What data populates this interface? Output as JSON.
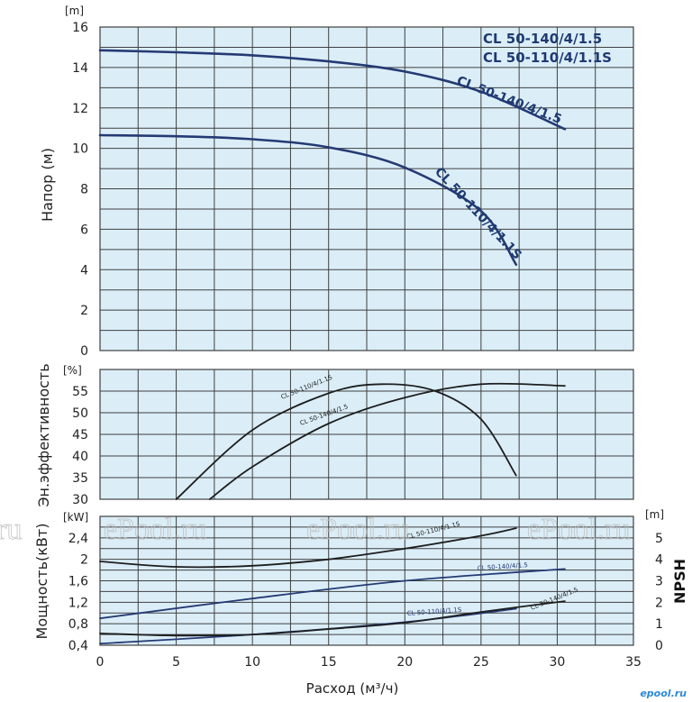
{
  "chart_data": [
    {
      "type": "line",
      "id": "head",
      "ylabel": "Напор (м)",
      "yunit": "[m]",
      "xlim": [
        0,
        35
      ],
      "ylim": [
        0,
        16
      ],
      "yticks": [
        "0",
        "2",
        "4",
        "6",
        "8",
        "10",
        "12",
        "14",
        "16"
      ],
      "grid": true,
      "legend_position": "top-right",
      "legend": [
        "CL 50-140/4/1.5",
        "CL 50-110/4/1.1S"
      ],
      "series": [
        {
          "name": "CL 50-140/4/1.5",
          "label": "CL 50-140/4/1.5",
          "points": [
            [
              0,
              14.85
            ],
            [
              5,
              14.75
            ],
            [
              10,
              14.6
            ],
            [
              15,
              14.3
            ],
            [
              20,
              13.8
            ],
            [
              25,
              12.8
            ],
            [
              30.5,
              10.95
            ]
          ]
        },
        {
          "name": "CL 50-110/4/1.1S",
          "label": "CL 50-110/4/1.1S",
          "points": [
            [
              0,
              10.65
            ],
            [
              5,
              10.6
            ],
            [
              10,
              10.45
            ],
            [
              15,
              10.05
            ],
            [
              20,
              9.05
            ],
            [
              25,
              6.9
            ],
            [
              27.3,
              4.25
            ]
          ]
        }
      ]
    },
    {
      "type": "line",
      "id": "efficiency",
      "ylabel": "Эн.эффективность",
      "yunit": "[%]",
      "xlim": [
        0,
        35
      ],
      "ylim": [
        30,
        60
      ],
      "yticks": [
        "30",
        "35",
        "40",
        "45",
        "50",
        "55"
      ],
      "grid": true,
      "series": [
        {
          "name": "CL 50-110/4/1.1S",
          "label": "CL 50-110/4/1.1S",
          "points": [
            [
              5,
              30
            ],
            [
              10,
              46
            ],
            [
              15,
              54.5
            ],
            [
              18.5,
              56.6
            ],
            [
              22,
              55
            ],
            [
              25,
              48.5
            ],
            [
              27.3,
              35.5
            ]
          ]
        },
        {
          "name": "CL 50-140/4/1.5",
          "label": "CL 50-140/4/1.5",
          "points": [
            [
              7.2,
              30
            ],
            [
              10,
              37.5
            ],
            [
              15,
              47.5
            ],
            [
              20,
              53.5
            ],
            [
              25,
              56.6
            ],
            [
              30.5,
              56.2
            ]
          ]
        }
      ]
    },
    {
      "type": "line",
      "id": "power-npsh",
      "ylabel": "Мощность(кВт)",
      "yunit": "[kW]",
      "y2label": "NPSH",
      "y2unit": "[m]",
      "xlabel": "Расход (м³/ч)",
      "xlim": [
        0,
        35
      ],
      "ylim": [
        0.4,
        2.8
      ],
      "y2lim": [
        0,
        6
      ],
      "xticks": [
        "0",
        "5",
        "10",
        "15",
        "20",
        "25",
        "30",
        "35"
      ],
      "yticks": [
        "0,4",
        "0,8",
        "1,2",
        "1,6",
        "2",
        "2,4"
      ],
      "y2ticks": [
        "0",
        "1",
        "2",
        "3",
        "4",
        "5"
      ],
      "grid": true,
      "series": [
        {
          "name": "CL 50-110/4/1.1S",
          "label": "CL 50-110/4/1.1S",
          "quantity": "NPSH",
          "axis": "y2",
          "points": [
            [
              0,
              3.9
            ],
            [
              5,
              3.65
            ],
            [
              10,
              3.7
            ],
            [
              15,
              4.0
            ],
            [
              20,
              4.5
            ],
            [
              25,
              5.1
            ],
            [
              27.3,
              5.45
            ]
          ]
        },
        {
          "name": "CL 50-140/4/1.5",
          "label": "CL 50-140/4/1.5",
          "quantity": "power",
          "axis": "y",
          "points": [
            [
              0,
              0.9
            ],
            [
              10,
              1.27
            ],
            [
              20,
              1.6
            ],
            [
              30.5,
              1.82
            ]
          ]
        },
        {
          "name": "CL 50-110/4/1.1S",
          "label": "CL 50-110/4/1.1S",
          "quantity": "power",
          "axis": "y",
          "points": [
            [
              0,
              0.43
            ],
            [
              10,
              0.6
            ],
            [
              20,
              0.83
            ],
            [
              27.3,
              1.08
            ]
          ]
        },
        {
          "name": "CL 50-140/4/1.5",
          "label": "CL 50-140/4/1.5",
          "quantity": "NPSH",
          "axis": "y2",
          "points": [
            [
              0,
              0.55
            ],
            [
              5,
              0.45
            ],
            [
              10,
              0.5
            ],
            [
              15,
              0.75
            ],
            [
              20,
              1.05
            ],
            [
              25,
              1.55
            ],
            [
              30.5,
              2.05
            ]
          ]
        }
      ]
    }
  ],
  "colors": {
    "plot_bg": "#dbeef8",
    "grid": "#3f3f3f",
    "blue_curve": "#253a73",
    "black_curve": "#1e1e1e",
    "legend_text": "#1f3a72",
    "watermark": "#e4e4e4",
    "logo": "#2e8ad8"
  },
  "watermark": {
    "text": "ePool.ru",
    "logo": "epool.ru"
  }
}
